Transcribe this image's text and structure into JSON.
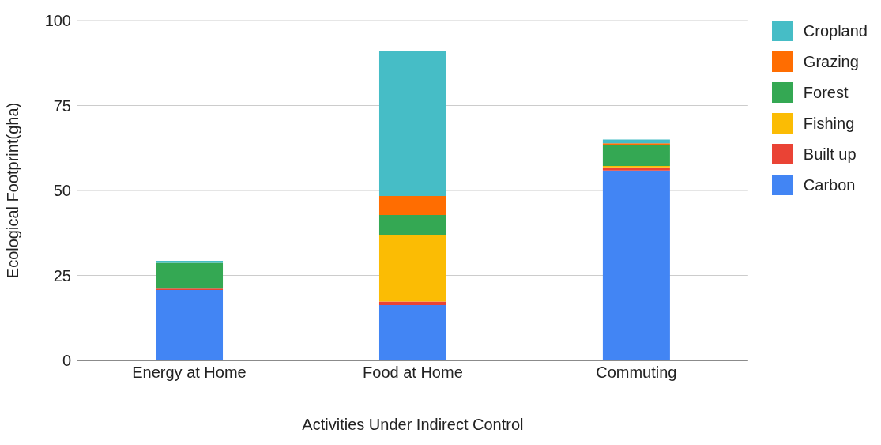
{
  "chart_data": {
    "type": "bar",
    "stacked": true,
    "xlabel": "Activities Under Indirect Control",
    "ylabel": "Ecological Footprint(gha)",
    "categories": [
      "Energy at Home",
      "Food at Home",
      "Commuting"
    ],
    "series": [
      {
        "name": "Carbon",
        "color": "#4285f4",
        "values": [
          20.7,
          16.3,
          55.9
        ]
      },
      {
        "name": "Built up",
        "color": "#ea4335",
        "values": [
          0.4,
          1.0,
          0.9
        ]
      },
      {
        "name": "Fishing",
        "color": "#fbbc04",
        "values": [
          0,
          19.7,
          0.4
        ]
      },
      {
        "name": "Forest",
        "color": "#34a853",
        "values": [
          7.6,
          5.8,
          6.2
        ]
      },
      {
        "name": "Grazing",
        "color": "#ff6d01",
        "values": [
          0,
          5.6,
          0.5
        ]
      },
      {
        "name": "Cropland",
        "color": "#46bdc6",
        "values": [
          0.6,
          42.6,
          1.1
        ]
      }
    ],
    "ylim": [
      0,
      100
    ],
    "yticks": [
      0,
      25,
      50,
      75,
      100
    ],
    "grid": "y",
    "legend": "top right"
  }
}
